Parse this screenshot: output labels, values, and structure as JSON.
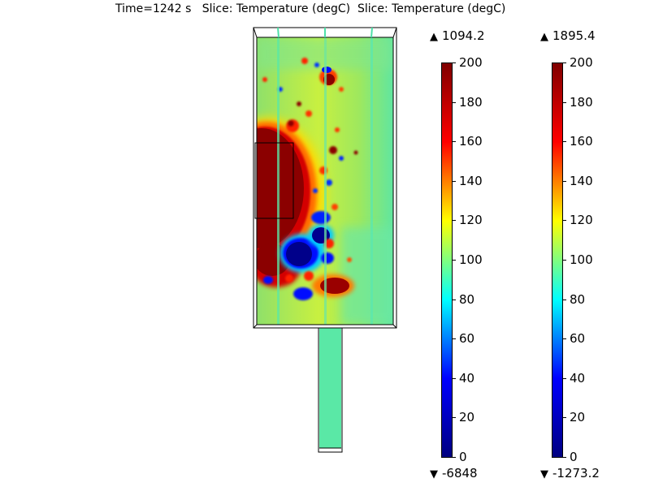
{
  "title": "Time=1242 s   Slice: Temperature (degC)  Slice: Temperature (degC)",
  "colormap": [
    "#000080",
    "#0000ff",
    "#00ffff",
    "#ffff00",
    "#ff0000",
    "#800000"
  ],
  "field_colors": {
    "base": "#a6e85a",
    "cool": "#5aeaa6",
    "hot": "#8b0000",
    "red": "#ff1a00",
    "orange": "#ff8c1a",
    "blue": "#0a1aff",
    "navy": "#000090",
    "cyan": "#40e0ff"
  },
  "legends": [
    {
      "max_label": "1094.2",
      "min_label": "-6848",
      "ticks": [
        "200",
        "180",
        "160",
        "140",
        "120",
        "100",
        "80",
        "60",
        "40",
        "20",
        "0"
      ]
    },
    {
      "max_label": "1895.4",
      "min_label": "-1273.2",
      "ticks": [
        "200",
        "180",
        "160",
        "140",
        "120",
        "100",
        "80",
        "60",
        "40",
        "20",
        "0"
      ]
    }
  ]
}
